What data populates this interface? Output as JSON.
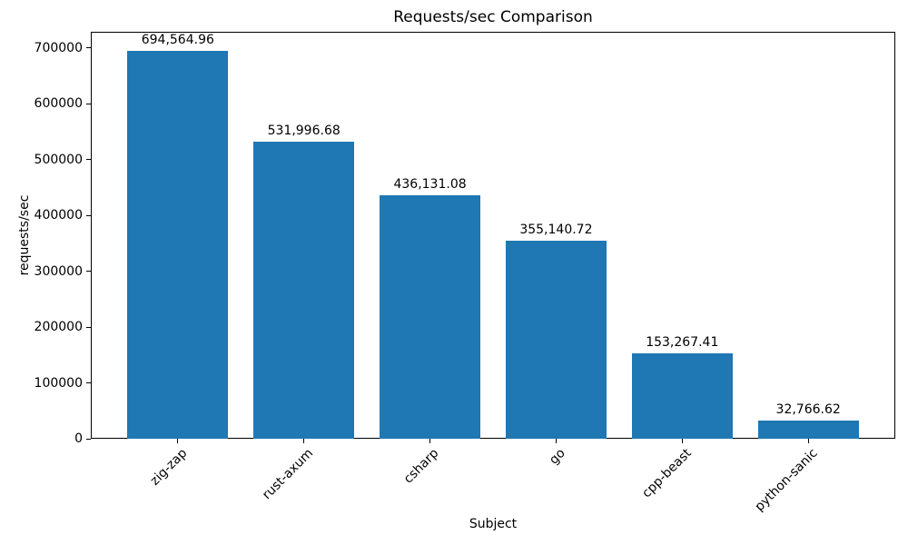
{
  "chart_data": {
    "type": "bar",
    "title": "Requests/sec Comparison",
    "xlabel": "Subject",
    "ylabel": "requests/sec",
    "categories": [
      "zig-zap",
      "rust-axum",
      "csharp",
      "go",
      "cpp-beast",
      "python-sanic"
    ],
    "values": [
      694564.96,
      531996.68,
      436131.08,
      355140.72,
      153267.41,
      32766.62
    ],
    "value_labels": [
      "694,564.96",
      "531,996.68",
      "436,131.08",
      "355,140.72",
      "153,267.41",
      "32,766.62"
    ],
    "yticks": [
      0,
      100000,
      200000,
      300000,
      400000,
      500000,
      600000,
      700000
    ],
    "ytick_labels": [
      "0",
      "100000",
      "200000",
      "300000",
      "400000",
      "500000",
      "600000",
      "700000"
    ],
    "ylim": [
      0,
      729293
    ],
    "bar_color": "#1f77b4",
    "grid": false,
    "legend_position": "none"
  }
}
